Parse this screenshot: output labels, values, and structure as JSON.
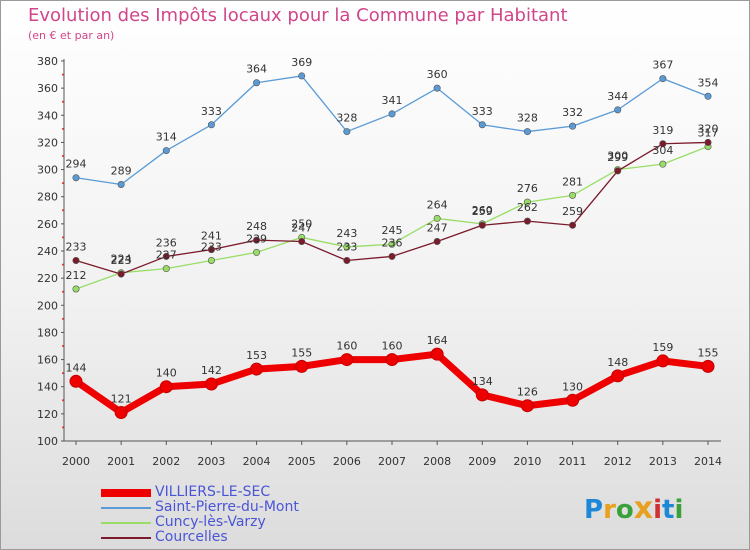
{
  "chart_data": {
    "type": "line",
    "title": "Evolution des Impôts locaux pour la Commune par Habitant",
    "subtitle": "(en € et par an)",
    "logo_text": "Proxiti",
    "categories": [
      "2000",
      "2001",
      "2002",
      "2003",
      "2004",
      "2005",
      "2006",
      "2007",
      "2008",
      "2009",
      "2010",
      "2011",
      "2012",
      "2013",
      "2014"
    ],
    "ylim": [
      100,
      380
    ],
    "yticks": [
      100,
      120,
      140,
      160,
      180,
      200,
      220,
      240,
      260,
      280,
      300,
      320,
      340,
      360,
      380
    ],
    "grid": false,
    "legend_position": "bottom-left",
    "series": [
      {
        "name": "VILLIERS-LE-SEC",
        "color": "#ee0000",
        "emphasis": true,
        "values": [
          144,
          121,
          140,
          142,
          153,
          155,
          160,
          160,
          164,
          134,
          126,
          130,
          148,
          159,
          155
        ]
      },
      {
        "name": "Saint-Pierre-du-Mont",
        "color": "#5b9bd5",
        "values": [
          294,
          289,
          314,
          333,
          364,
          369,
          328,
          341,
          360,
          333,
          328,
          332,
          344,
          367,
          354
        ]
      },
      {
        "name": "Cuncy-lès-Varzy",
        "color": "#99dd66",
        "values": [
          212,
          224,
          227,
          233,
          239,
          250,
          243,
          245,
          264,
          260,
          276,
          281,
          300,
          304,
          317
        ]
      },
      {
        "name": "Courcelles",
        "color": "#7a1a2a",
        "values": [
          233,
          223,
          236,
          241,
          248,
          247,
          233,
          236,
          247,
          259,
          262,
          259,
          299,
          319,
          320
        ]
      }
    ]
  }
}
